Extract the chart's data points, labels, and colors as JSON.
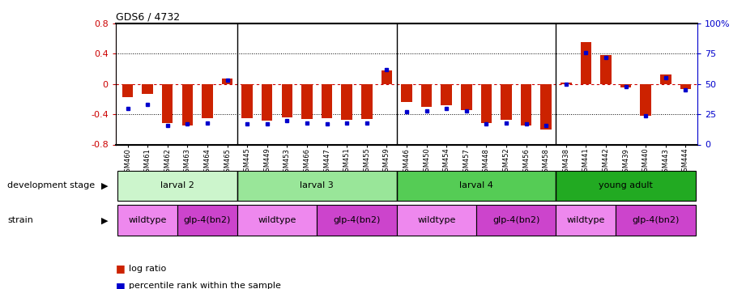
{
  "title": "GDS6 / 4732",
  "samples": [
    "GSM460",
    "GSM461",
    "GSM462",
    "GSM463",
    "GSM464",
    "GSM465",
    "GSM445",
    "GSM449",
    "GSM453",
    "GSM466",
    "GSM447",
    "GSM451",
    "GSM455",
    "GSM459",
    "GSM446",
    "GSM450",
    "GSM454",
    "GSM457",
    "GSM448",
    "GSM452",
    "GSM456",
    "GSM458",
    "GSM438",
    "GSM441",
    "GSM442",
    "GSM439",
    "GSM440",
    "GSM443",
    "GSM444"
  ],
  "log_ratio": [
    -0.18,
    -0.13,
    -0.52,
    -0.55,
    -0.45,
    0.07,
    -0.45,
    -0.48,
    -0.44,
    -0.46,
    -0.45,
    -0.47,
    -0.46,
    0.18,
    -0.24,
    -0.3,
    -0.28,
    -0.35,
    -0.52,
    -0.47,
    -0.55,
    -0.6,
    0.02,
    0.55,
    0.38,
    -0.05,
    -0.42,
    0.12,
    -0.07
  ],
  "percentile": [
    30,
    33,
    16,
    17,
    18,
    53,
    17,
    17,
    20,
    18,
    17,
    18,
    18,
    62,
    27,
    28,
    30,
    28,
    17,
    18,
    17,
    16,
    50,
    76,
    72,
    48,
    24,
    55,
    45
  ],
  "ylim": [
    -0.8,
    0.8
  ],
  "yticks_left": [
    -0.8,
    -0.4,
    0.0,
    0.4,
    0.8
  ],
  "yticks_right": [
    0,
    25,
    50,
    75,
    100
  ],
  "bar_color": "#cc2200",
  "dot_color": "#0000cc",
  "group_boundaries": [
    6,
    14,
    22
  ],
  "dev_stages": [
    {
      "label": "larval 2",
      "start": 0,
      "end": 6,
      "color": "#ccf5cc"
    },
    {
      "label": "larval 3",
      "start": 6,
      "end": 14,
      "color": "#99e699"
    },
    {
      "label": "larval 4",
      "start": 14,
      "end": 22,
      "color": "#55cc55"
    },
    {
      "label": "young adult",
      "start": 22,
      "end": 29,
      "color": "#22aa22"
    }
  ],
  "strains": [
    {
      "label": "wildtype",
      "start": 0,
      "end": 3,
      "color": "#ee88ee"
    },
    {
      "label": "glp-4(bn2)",
      "start": 3,
      "end": 6,
      "color": "#cc44cc"
    },
    {
      "label": "wildtype",
      "start": 6,
      "end": 10,
      "color": "#ee88ee"
    },
    {
      "label": "glp-4(bn2)",
      "start": 10,
      "end": 14,
      "color": "#cc44cc"
    },
    {
      "label": "wildtype",
      "start": 14,
      "end": 18,
      "color": "#ee88ee"
    },
    {
      "label": "glp-4(bn2)",
      "start": 18,
      "end": 22,
      "color": "#cc44cc"
    },
    {
      "label": "wildtype",
      "start": 22,
      "end": 25,
      "color": "#ee88ee"
    },
    {
      "label": "glp-4(bn2)",
      "start": 25,
      "end": 29,
      "color": "#cc44cc"
    }
  ],
  "legend_log_ratio": "log ratio",
  "legend_percentile": "percentile rank within the sample",
  "dev_stage_label": "development stage",
  "strain_label": "strain"
}
